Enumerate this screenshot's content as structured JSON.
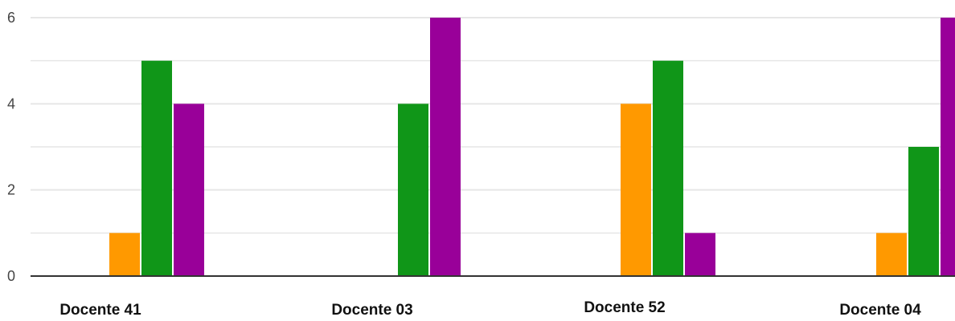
{
  "chart_data": {
    "type": "bar",
    "categories": [
      "Docente 41",
      "Docente 03",
      "Docente 52",
      "Docente 04"
    ],
    "series": [
      {
        "values": [
          0,
          0,
          0,
          0
        ],
        "color": "#3366cc"
      },
      {
        "values": [
          0,
          0,
          0,
          0
        ],
        "color": "#dc3912"
      },
      {
        "values": [
          1,
          0,
          4,
          1
        ],
        "color": "#ff9900"
      },
      {
        "values": [
          5,
          4,
          5,
          3
        ],
        "color": "#109618"
      },
      {
        "values": [
          4,
          6,
          1,
          6
        ],
        "color": "#990099"
      }
    ],
    "y_ticks": [
      "0",
      "2",
      "4",
      "6"
    ],
    "ylim": [
      0,
      6
    ],
    "grid": true,
    "gridline_color": "#e6e6e6",
    "axis_color": "#333333"
  }
}
